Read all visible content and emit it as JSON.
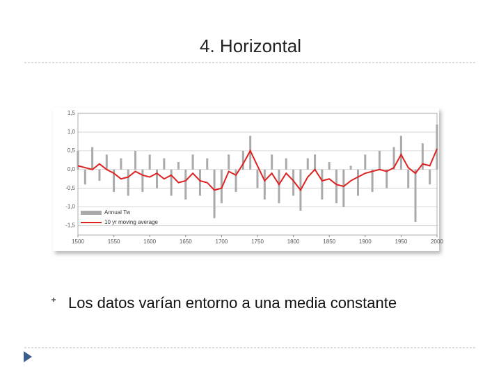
{
  "header": {
    "title": "4. Horizontal"
  },
  "bullet": {
    "text": "Los datos varían entorno a una media constante"
  },
  "chart_data": {
    "type": "line",
    "x": [
      1500,
      1510,
      1520,
      1530,
      1540,
      1550,
      1560,
      1570,
      1580,
      1590,
      1600,
      1610,
      1620,
      1630,
      1640,
      1650,
      1660,
      1670,
      1680,
      1690,
      1700,
      1710,
      1720,
      1730,
      1740,
      1750,
      1760,
      1770,
      1780,
      1790,
      1800,
      1810,
      1820,
      1830,
      1840,
      1850,
      1860,
      1870,
      1880,
      1890,
      1900,
      1910,
      1920,
      1930,
      1940,
      1950,
      1960,
      1970,
      1980,
      1990,
      2000
    ],
    "series": [
      {
        "name": "Annual Tw",
        "color": "#aaaaaa",
        "style": "spikes",
        "values": [
          0.5,
          -0.4,
          0.6,
          -0.3,
          0.4,
          -0.6,
          0.3,
          -0.7,
          0.5,
          -0.6,
          0.4,
          -0.5,
          0.3,
          -0.7,
          0.2,
          -0.8,
          0.4,
          -0.7,
          0.3,
          -1.3,
          -0.9,
          0.4,
          -0.6,
          0.5,
          0.9,
          -0.5,
          -0.8,
          0.4,
          -0.9,
          0.3,
          -0.7,
          -1.1,
          0.3,
          0.4,
          -0.8,
          0.2,
          -0.9,
          -1.0,
          0.1,
          -0.7,
          0.4,
          -0.6,
          0.5,
          -0.5,
          0.6,
          0.9,
          -0.5,
          -1.4,
          0.7,
          -0.4,
          1.2
        ]
      },
      {
        "name": "10 yr moving average",
        "color": "#dd2222",
        "style": "line",
        "values": [
          0.1,
          0.05,
          0.0,
          0.15,
          0.0,
          -0.1,
          -0.25,
          -0.2,
          -0.05,
          -0.15,
          -0.2,
          -0.1,
          -0.25,
          -0.15,
          -0.35,
          -0.3,
          -0.1,
          -0.3,
          -0.35,
          -0.55,
          -0.5,
          -0.05,
          -0.15,
          0.15,
          0.5,
          0.1,
          -0.3,
          -0.1,
          -0.4,
          -0.1,
          -0.3,
          -0.55,
          -0.2,
          0.0,
          -0.3,
          -0.25,
          -0.4,
          -0.45,
          -0.3,
          -0.2,
          -0.1,
          -0.05,
          0.0,
          -0.05,
          0.05,
          0.4,
          0.05,
          -0.1,
          0.15,
          0.1,
          0.55
        ]
      }
    ],
    "xlim": [
      1500,
      2000
    ],
    "xticks": [
      1500,
      1550,
      1600,
      1650,
      1700,
      1750,
      1800,
      1850,
      1900,
      1950,
      2000
    ],
    "ylim": [
      -1.75,
      1.5
    ],
    "yticks": [
      {
        "value": 1.5,
        "label": "1,5"
      },
      {
        "value": 1.0,
        "label": "1,0"
      },
      {
        "value": 0.5,
        "label": "0,5"
      },
      {
        "value": 0,
        "label": "0,0"
      },
      {
        "value": -0.5,
        "label": "-0,5"
      },
      {
        "value": -1.0,
        "label": "-1,0"
      },
      {
        "value": -1.5,
        "label": "-1,5"
      }
    ],
    "grid": true
  }
}
